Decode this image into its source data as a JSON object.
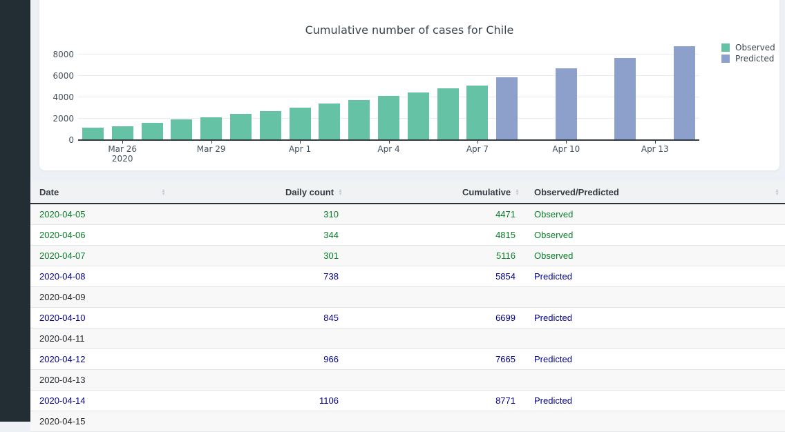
{
  "page": {
    "background": "#edf0f4",
    "sidebar_color": "#222d34"
  },
  "chart": {
    "title": "Cumulative number of cases for Chile",
    "legend": [
      {
        "label": "Observed",
        "color": "#66c2a5"
      },
      {
        "label": "Predicted",
        "color": "#8da0cb"
      }
    ],
    "chart_data": {
      "type": "bar",
      "title": "Cumulative number of cases for Chile",
      "x": [
        "2020-03-25",
        "2020-03-26",
        "2020-03-27",
        "2020-03-28",
        "2020-03-29",
        "2020-03-30",
        "2020-03-31",
        "2020-04-01",
        "2020-04-02",
        "2020-04-03",
        "2020-04-04",
        "2020-04-05",
        "2020-04-06",
        "2020-04-07",
        "2020-04-08",
        "2020-04-09",
        "2020-04-10",
        "2020-04-11",
        "2020-04-12",
        "2020-04-13",
        "2020-04-14"
      ],
      "series": [
        {
          "name": "Observed",
          "color": "#66c2a5",
          "values": [
            1142,
            1306,
            1610,
            1909,
            2139,
            2449,
            2738,
            3031,
            3404,
            3737,
            4161,
            4471,
            4815,
            5116,
            null,
            null,
            null,
            null,
            null,
            null,
            null
          ]
        },
        {
          "name": "Predicted",
          "color": "#8da0cb",
          "values": [
            null,
            null,
            null,
            null,
            null,
            null,
            null,
            null,
            null,
            null,
            null,
            null,
            null,
            null,
            5854,
            null,
            6699,
            null,
            7665,
            null,
            8771
          ]
        }
      ],
      "yticks": [
        0,
        2000,
        4000,
        6000,
        8000
      ],
      "ylim": [
        0,
        9225
      ],
      "grid": true,
      "legend_position": "top-right",
      "xticks": [
        {
          "index": 1,
          "label": "Mar 26",
          "sub": "2020"
        },
        {
          "index": 4,
          "label": "Mar 29",
          "sub": ""
        },
        {
          "index": 7,
          "label": "Apr 1",
          "sub": ""
        },
        {
          "index": 10,
          "label": "Apr 4",
          "sub": ""
        },
        {
          "index": 13,
          "label": "Apr 7",
          "sub": ""
        },
        {
          "index": 16,
          "label": "Apr 10",
          "sub": ""
        },
        {
          "index": 19,
          "label": "Apr 13",
          "sub": ""
        }
      ]
    }
  },
  "table": {
    "columns": [
      {
        "label": "Date",
        "align": "left"
      },
      {
        "label": "Daily count",
        "align": "right"
      },
      {
        "label": "Cumulative",
        "align": "right"
      },
      {
        "label": "Observed/Predicted",
        "align": "left"
      }
    ],
    "text_colors": {
      "observed": "#067d26",
      "predicted": "#00008b",
      "empty": "#212529"
    },
    "rows": [
      {
        "date": "2020-04-05",
        "daily": "310",
        "cumulative": "4471",
        "status": "Observed",
        "kind": "observed"
      },
      {
        "date": "2020-04-06",
        "daily": "344",
        "cumulative": "4815",
        "status": "Observed",
        "kind": "observed"
      },
      {
        "date": "2020-04-07",
        "daily": "301",
        "cumulative": "5116",
        "status": "Observed",
        "kind": "observed"
      },
      {
        "date": "2020-04-08",
        "daily": "738",
        "cumulative": "5854",
        "status": "Predicted",
        "kind": "predicted"
      },
      {
        "date": "2020-04-09",
        "daily": "",
        "cumulative": "",
        "status": "",
        "kind": "empty"
      },
      {
        "date": "2020-04-10",
        "daily": "845",
        "cumulative": "6699",
        "status": "Predicted",
        "kind": "predicted"
      },
      {
        "date": "2020-04-11",
        "daily": "",
        "cumulative": "",
        "status": "",
        "kind": "empty"
      },
      {
        "date": "2020-04-12",
        "daily": "966",
        "cumulative": "7665",
        "status": "Predicted",
        "kind": "predicted"
      },
      {
        "date": "2020-04-13",
        "daily": "",
        "cumulative": "",
        "status": "",
        "kind": "empty"
      },
      {
        "date": "2020-04-14",
        "daily": "1106",
        "cumulative": "8771",
        "status": "Predicted",
        "kind": "predicted"
      },
      {
        "date": "2020-04-15",
        "daily": "",
        "cumulative": "",
        "status": "",
        "kind": "empty"
      }
    ]
  }
}
